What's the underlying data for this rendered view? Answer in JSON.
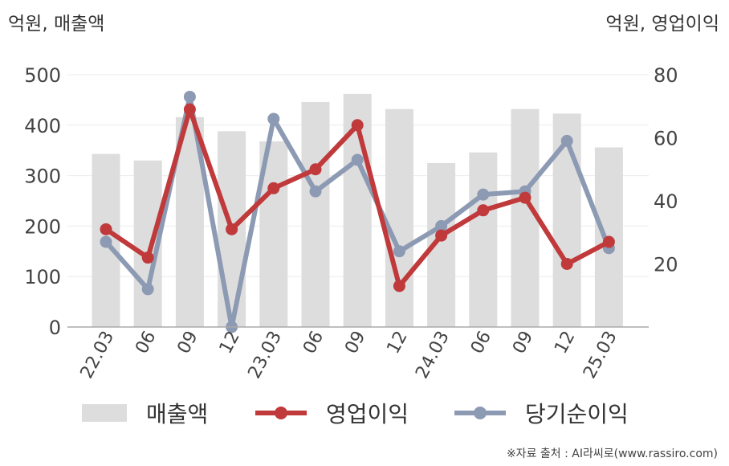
{
  "units": {
    "left": "억원, 매출액",
    "right": "억원, 영업이익"
  },
  "source": "※자료 출처 : AI라씨로(www.rassiro.com)",
  "colors": {
    "revenue": "#dddddd",
    "operating": "#c0393b",
    "net": "#8d9ab3"
  },
  "chart_data": {
    "type": "bar",
    "categories": [
      "22.03",
      "06",
      "09",
      "12",
      "23.03",
      "06",
      "09",
      "12",
      "24.03",
      "06",
      "09",
      "12",
      "25.03"
    ],
    "y_left": {
      "ticks": [
        0,
        100,
        200,
        300,
        400,
        500
      ],
      "ylim": [
        0,
        500
      ]
    },
    "y_right": {
      "ticks": [
        20,
        40,
        60,
        80
      ],
      "ylim": [
        0,
        80
      ]
    },
    "series": [
      {
        "name": "매출액",
        "kind": "bar",
        "axis": "left",
        "color": "#dddddd",
        "values": [
          343,
          330,
          416,
          388,
          368,
          446,
          462,
          432,
          325,
          346,
          432,
          423,
          356
        ]
      },
      {
        "name": "영업이익",
        "kind": "line",
        "axis": "right",
        "color": "#c0393b",
        "values": [
          31,
          22,
          69,
          31,
          44,
          50,
          64,
          13,
          29,
          37,
          41,
          20,
          27
        ]
      },
      {
        "name": "당기순이익",
        "kind": "line",
        "axis": "right",
        "color": "#8d9ab3",
        "values": [
          27,
          12,
          73,
          0,
          66,
          43,
          53,
          24,
          32,
          42,
          43,
          59,
          25
        ]
      }
    ],
    "grid": true,
    "legend": "bottom"
  }
}
